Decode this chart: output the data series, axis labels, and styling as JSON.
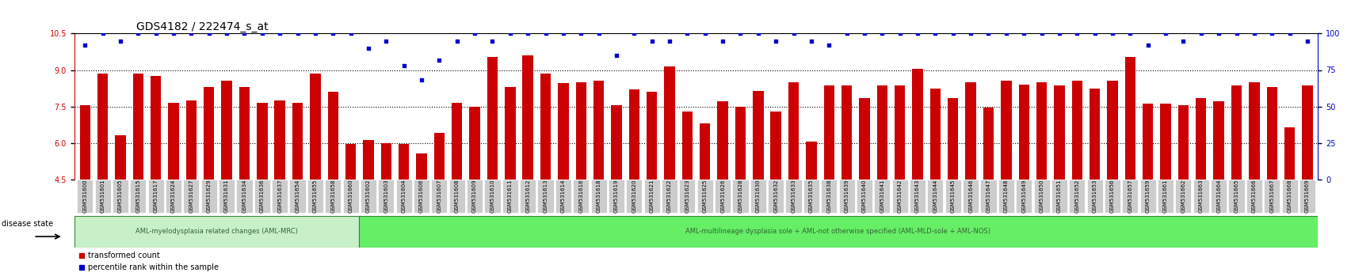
{
  "title": "GDS4182 / 222474_s_at",
  "ylim_left": [
    4.5,
    10.5
  ],
  "ylim_right": [
    0,
    100
  ],
  "yticks_left": [
    4.5,
    6.0,
    7.5,
    9.0,
    10.5
  ],
  "yticks_right": [
    0,
    25,
    50,
    75,
    100
  ],
  "bar_color": "#cc0000",
  "dot_color": "#0000cc",
  "tick_bg": "#cccccc",
  "group1_color": "#c8f0c8",
  "group2_color": "#66ee66",
  "group1_label": "AML-myelodysplasia related changes (AML-MRC)",
  "group2_label": "AML-multilineage dysplasia sole + AML-not otherwise specified (AML-MLD-sole + AML-NOS)",
  "legend_bar_label": "transformed count",
  "legend_dot_label": "percentile rank within the sample",
  "samples": [
    "GSM531600",
    "GSM531601",
    "GSM531605",
    "GSM531615",
    "GSM531617",
    "GSM531624",
    "GSM531627",
    "GSM531629",
    "GSM531631",
    "GSM531634",
    "GSM531636",
    "GSM531637",
    "GSM531654",
    "GSM531655",
    "GSM531658",
    "GSM531660",
    "GSM531602",
    "GSM531603",
    "GSM531604",
    "GSM531606",
    "GSM531607",
    "GSM531608",
    "GSM531609",
    "GSM531610",
    "GSM531611",
    "GSM531612",
    "GSM531613",
    "GSM531614",
    "GSM531616",
    "GSM531618",
    "GSM531619",
    "GSM531620",
    "GSM531621",
    "GSM531622",
    "GSM531623",
    "GSM531625",
    "GSM531626",
    "GSM531628",
    "GSM531630",
    "GSM531632",
    "GSM531633",
    "GSM531635",
    "GSM531638",
    "GSM531639",
    "GSM531640",
    "GSM531641",
    "GSM531642",
    "GSM531643",
    "GSM531644",
    "GSM531645",
    "GSM531646",
    "GSM531647",
    "GSM531648",
    "GSM531649",
    "GSM531650",
    "GSM531651",
    "GSM531652",
    "GSM531653",
    "GSM531656",
    "GSM531657",
    "GSM531659",
    "GSM531661",
    "GSM531662",
    "GSM531663",
    "GSM531664",
    "GSM531665",
    "GSM531666",
    "GSM531667",
    "GSM531668",
    "GSM531669"
  ],
  "bar_values": [
    7.55,
    8.85,
    6.3,
    8.85,
    8.75,
    7.65,
    7.75,
    8.3,
    8.55,
    8.3,
    7.65,
    7.75,
    7.65,
    8.85,
    8.1,
    5.95,
    6.1,
    6.0,
    5.95,
    5.55,
    6.4,
    7.65,
    7.5,
    9.55,
    8.3,
    9.6,
    8.85,
    8.45,
    8.5,
    8.55,
    7.55,
    8.2,
    8.1,
    9.15,
    7.3,
    6.8,
    7.7,
    7.5,
    8.15,
    7.3,
    8.5,
    6.05,
    8.35,
    8.35,
    7.85,
    8.35,
    8.35,
    9.05,
    8.25,
    7.85,
    8.5,
    7.45,
    8.55,
    8.4,
    8.5,
    8.35,
    8.55,
    8.25,
    8.55,
    9.55,
    7.6,
    7.6,
    7.55,
    7.85,
    7.7,
    8.35,
    8.5,
    8.3,
    6.65,
    8.35
  ],
  "dot_values": [
    92,
    100,
    95,
    100,
    100,
    100,
    100,
    100,
    100,
    100,
    100,
    100,
    100,
    100,
    100,
    100,
    90,
    95,
    78,
    68,
    82,
    95,
    100,
    95,
    100,
    100,
    100,
    100,
    100,
    100,
    85,
    100,
    95,
    95,
    100,
    100,
    95,
    100,
    100,
    95,
    100,
    95,
    92,
    100,
    100,
    100,
    100,
    100,
    100,
    100,
    100,
    100,
    100,
    100,
    100,
    100,
    100,
    100,
    100,
    100,
    92,
    100,
    95,
    100,
    100,
    100,
    100,
    100,
    100,
    95
  ],
  "group1_count": 16,
  "group2_count": 54
}
